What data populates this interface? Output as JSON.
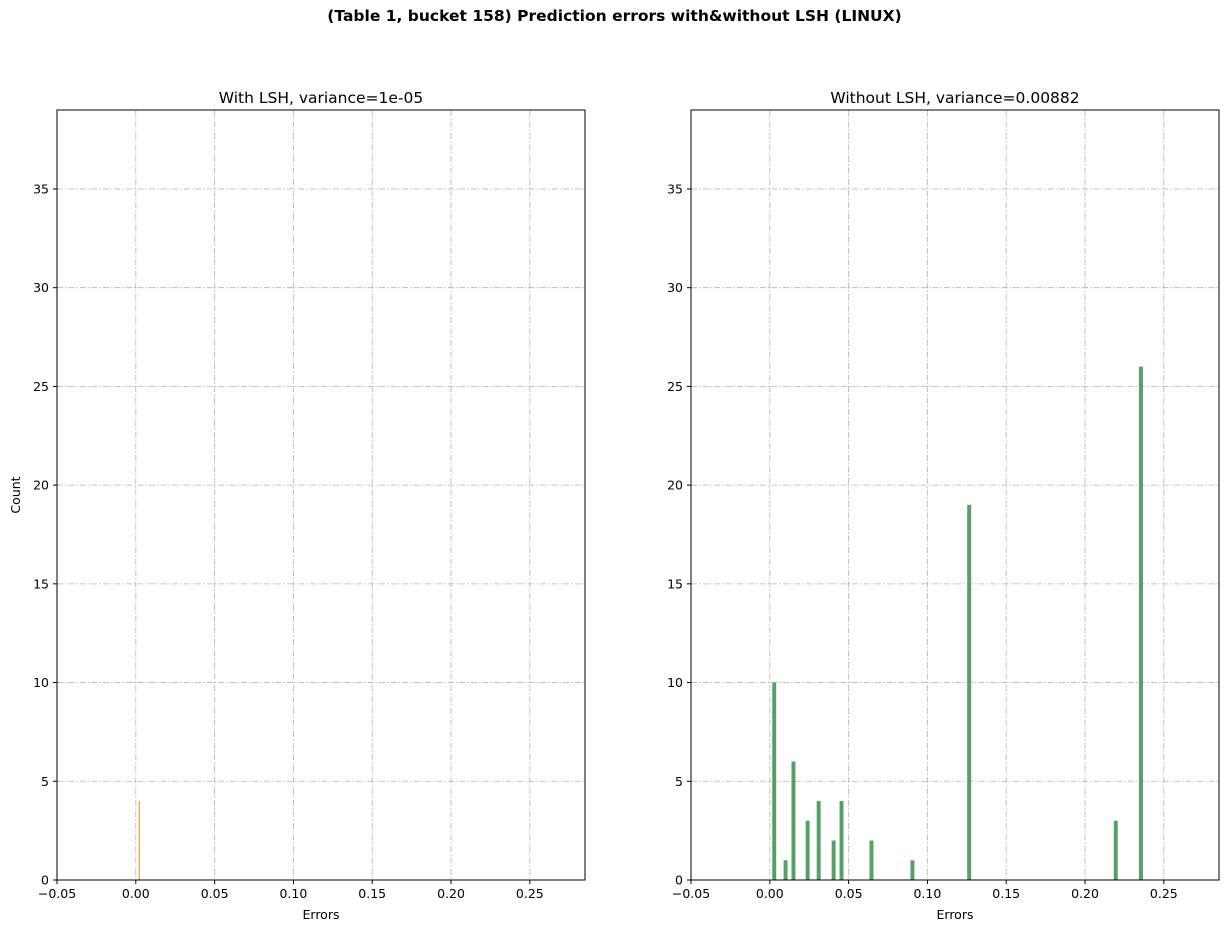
{
  "suptitle": "(Table 1, bucket 158) Prediction errors with&without LSH (LINUX)",
  "chart_data": [
    {
      "type": "bar",
      "title": "With LSH, variance=1e-05",
      "xlabel": "Errors",
      "ylabel": "Count",
      "xlim": [
        -0.05,
        0.285
      ],
      "ylim": [
        0,
        39
      ],
      "xticks": [
        -0.05,
        0.0,
        0.05,
        0.1,
        0.15,
        0.2,
        0.25
      ],
      "xtick_labels": [
        "−0.05",
        "0.00",
        "0.05",
        "0.10",
        "0.15",
        "0.20",
        "0.25"
      ],
      "yticks": [
        0,
        5,
        10,
        15,
        20,
        25,
        30,
        35
      ],
      "ytick_labels": [
        "0",
        "5",
        "10",
        "15",
        "20",
        "25",
        "30",
        "35"
      ],
      "grid": true,
      "bar_width": 0.0008,
      "color": "#e8a33a",
      "points": [
        {
          "x": 0.0022,
          "y": 4
        }
      ]
    },
    {
      "type": "bar",
      "title": "Without LSH, variance=0.00882",
      "xlabel": "Errors",
      "ylabel": "",
      "xlim": [
        -0.05,
        0.285
      ],
      "ylim": [
        0,
        39
      ],
      "xticks": [
        -0.05,
        0.0,
        0.05,
        0.1,
        0.15,
        0.2,
        0.25
      ],
      "xtick_labels": [
        "−0.05",
        "0.00",
        "0.05",
        "0.10",
        "0.15",
        "0.20",
        "0.25"
      ],
      "yticks": [
        0,
        5,
        10,
        15,
        20,
        25,
        30,
        35
      ],
      "ytick_labels": [
        "0",
        "5",
        "10",
        "15",
        "20",
        "25",
        "30",
        "35"
      ],
      "grid": true,
      "bar_width": 0.0025,
      "color": "#55a064",
      "points": [
        {
          "x": 0.0028,
          "y": 10
        },
        {
          "x": 0.01,
          "y": 1
        },
        {
          "x": 0.015,
          "y": 6
        },
        {
          "x": 0.024,
          "y": 3
        },
        {
          "x": 0.031,
          "y": 4
        },
        {
          "x": 0.0405,
          "y": 2
        },
        {
          "x": 0.0455,
          "y": 4
        },
        {
          "x": 0.0645,
          "y": 2
        },
        {
          "x": 0.0905,
          "y": 1
        },
        {
          "x": 0.1265,
          "y": 19
        },
        {
          "x": 0.2195,
          "y": 3
        },
        {
          "x": 0.2355,
          "y": 26
        }
      ]
    }
  ]
}
